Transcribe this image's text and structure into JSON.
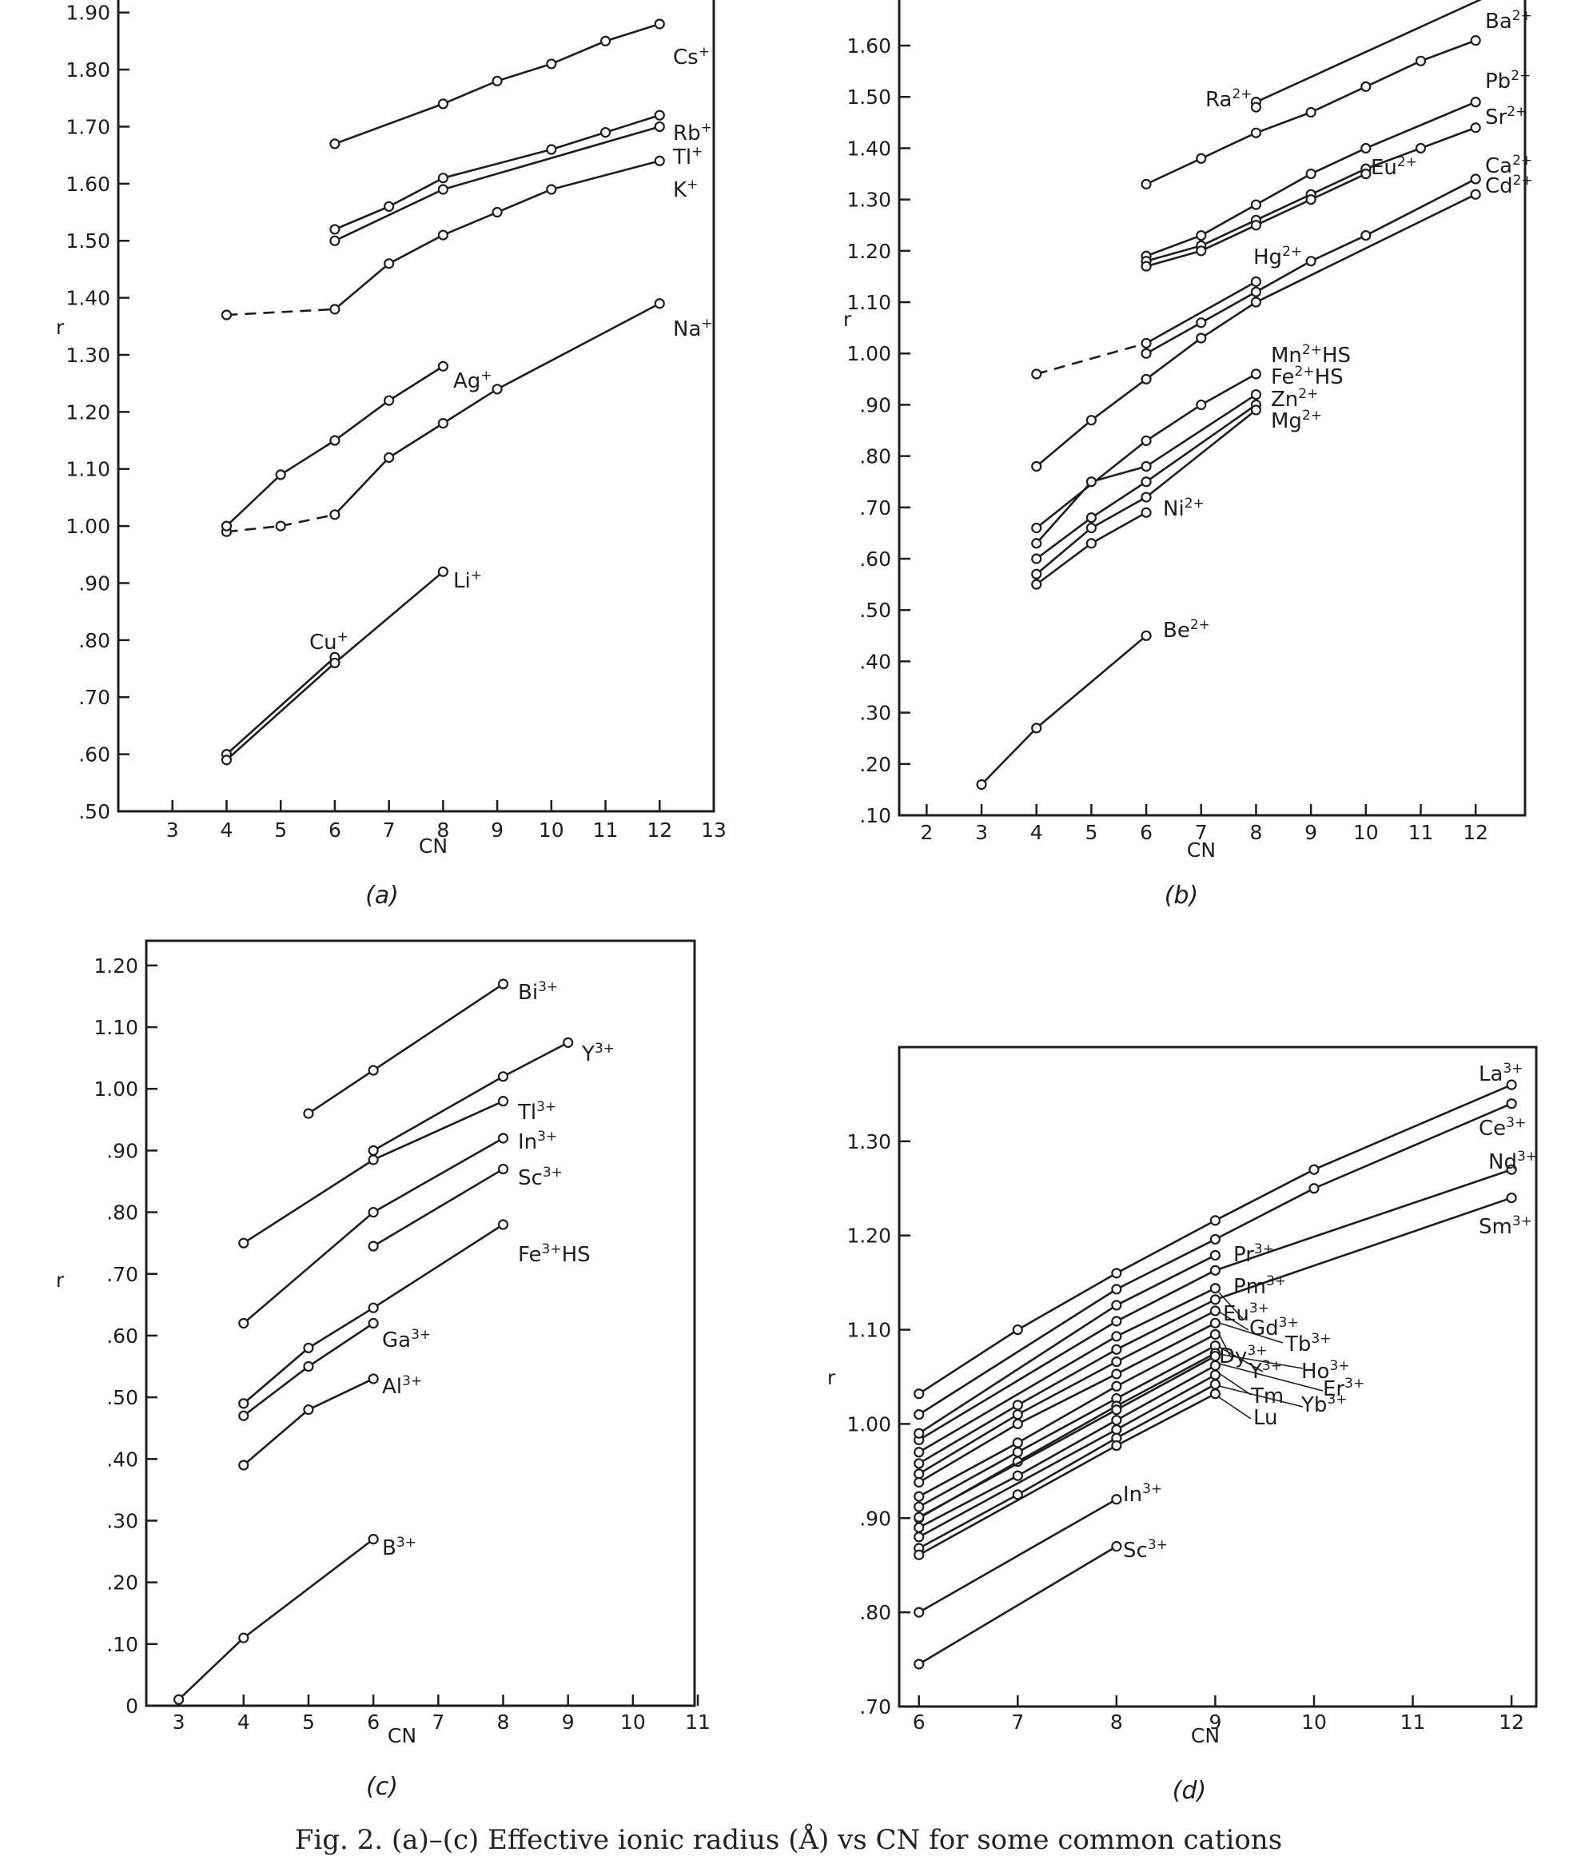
{
  "caption": "Fig. 2. (a)–(c) Effective ionic radius (Å) vs CN for some common cations",
  "chart_data": [
    {
      "type": "line",
      "panel": "(a)",
      "xlabel": "CN",
      "ylabel": "r",
      "xlim": [
        2,
        13
      ],
      "ylim": [
        0.5,
        1.95
      ],
      "xticks": [
        3,
        4,
        5,
        6,
        7,
        8,
        9,
        10,
        11,
        12,
        13
      ],
      "xtick_labels": [
        "3",
        "4",
        "5",
        "6",
        "7",
        "8",
        "9",
        "10",
        "11",
        "12",
        "13"
      ],
      "yticks": [
        0.5,
        0.6,
        0.7,
        0.8,
        0.9,
        1.0,
        1.1,
        1.2,
        1.3,
        1.4,
        1.5,
        1.6,
        1.7,
        1.8,
        1.9
      ],
      "ytick_labels": [
        ".50",
        ".60",
        ".70",
        ".80",
        ".90",
        "1.00",
        "1.10",
        "1.20",
        "1.30",
        "1.40",
        "1.50",
        "1.60",
        "1.70",
        "1.80",
        "1.90"
      ],
      "series": [
        {
          "name": "Cs+",
          "label": "Cs",
          "charge": "+",
          "x": [
            6,
            8,
            9,
            10,
            11,
            12
          ],
          "y": [
            1.67,
            1.74,
            1.78,
            1.81,
            1.85,
            1.88
          ]
        },
        {
          "name": "Rb+",
          "label": "Rb",
          "charge": "+",
          "x": [
            6,
            7,
            8,
            10,
            11,
            12
          ],
          "y": [
            1.52,
            1.56,
            1.61,
            1.66,
            1.69,
            1.72
          ]
        },
        {
          "name": "Tl+",
          "label": "Tl",
          "charge": "+",
          "x": [
            6,
            8,
            12
          ],
          "y": [
            1.5,
            1.59,
            1.7
          ]
        },
        {
          "name": "K+",
          "label": "K",
          "charge": "+",
          "x": [
            4,
            6,
            7,
            8,
            9,
            10,
            12
          ],
          "y": [
            1.37,
            1.38,
            1.46,
            1.51,
            1.55,
            1.59,
            1.64
          ],
          "dashed_segments": [
            0
          ]
        },
        {
          "name": "Na+",
          "label": "Na",
          "charge": "+",
          "x": [
            4,
            5,
            6,
            7,
            8,
            9,
            12
          ],
          "y": [
            0.99,
            1.0,
            1.02,
            1.12,
            1.18,
            1.24,
            1.39
          ],
          "dashed_segments": [
            0,
            1
          ]
        },
        {
          "name": "Ag+",
          "label": "Ag",
          "charge": "+",
          "x": [
            4,
            5,
            6,
            7,
            8
          ],
          "y": [
            1.0,
            1.09,
            1.15,
            1.22,
            1.28
          ]
        },
        {
          "name": "Cu+",
          "label": "Cu",
          "charge": "+",
          "x": [
            4,
            6
          ],
          "y": [
            0.6,
            0.77
          ]
        },
        {
          "name": "Li+",
          "label": "Li",
          "charge": "+",
          "x": [
            4,
            6,
            8
          ],
          "y": [
            0.59,
            0.76,
            0.92
          ]
        }
      ]
    },
    {
      "type": "line",
      "panel": "(b)",
      "xlabel": "CN",
      "ylabel": "r",
      "xlim": [
        1.5,
        12.9
      ],
      "ylim": [
        0.1,
        1.72
      ],
      "xticks": [
        2,
        3,
        4,
        5,
        6,
        7,
        8,
        9,
        10,
        11,
        12
      ],
      "xtick_labels": [
        "2",
        "3",
        "4",
        "5",
        "6",
        "7",
        "8",
        "9",
        "10",
        "11",
        "12"
      ],
      "yticks": [
        0.1,
        0.2,
        0.3,
        0.4,
        0.5,
        0.6,
        0.7,
        0.8,
        0.9,
        1.0,
        1.1,
        1.2,
        1.3,
        1.4,
        1.5,
        1.6
      ],
      "ytick_labels": [
        ".10",
        ".20",
        ".30",
        ".40",
        ".50",
        ".60",
        ".70",
        ".80",
        ".90",
        "1.00",
        "1.10",
        "1.20",
        "1.30",
        "1.40",
        "1.50",
        "1.60"
      ],
      "series": [
        {
          "name": "Ba2+",
          "label": "Ba",
          "charge": "2+",
          "x": [
            8,
            12.3
          ],
          "y": [
            1.49,
            1.7
          ]
        },
        {
          "name": "Ra2+",
          "label": "Ra",
          "charge": "2+",
          "x": [
            8
          ],
          "y": [
            1.48
          ]
        },
        {
          "name": "Ba2+ (lower)",
          "label": "",
          "charge": "",
          "x": [
            6,
            7,
            8,
            9,
            10,
            11,
            12
          ],
          "y": [
            1.33,
            1.38,
            1.43,
            1.47,
            1.52,
            1.57,
            1.61
          ]
        },
        {
          "name": "Pb2+",
          "label": "Pb",
          "charge": "2+",
          "x": [
            6,
            7,
            8,
            9,
            10,
            12
          ],
          "y": [
            1.19,
            1.23,
            1.29,
            1.35,
            1.4,
            1.49
          ]
        },
        {
          "name": "Sr2+",
          "label": "Sr",
          "charge": "2+",
          "x": [
            6,
            7,
            8,
            9,
            10,
            11,
            12
          ],
          "y": [
            1.18,
            1.21,
            1.26,
            1.31,
            1.36,
            1.4,
            1.44
          ]
        },
        {
          "name": "Eu2+",
          "label": "Eu",
          "charge": "2+",
          "x": [
            6,
            7,
            8,
            9,
            10
          ],
          "y": [
            1.17,
            1.2,
            1.25,
            1.3,
            1.35
          ]
        },
        {
          "name": "Hg2+",
          "label": "Hg",
          "charge": "2+",
          "x": [
            4,
            6,
            8
          ],
          "y": [
            0.96,
            1.02,
            1.14
          ],
          "dashed_segments": [
            0
          ]
        },
        {
          "name": "Ca2+",
          "label": "Ca",
          "charge": "2+",
          "x": [
            6,
            7,
            8,
            9,
            10,
            12
          ],
          "y": [
            1.0,
            1.06,
            1.12,
            1.18,
            1.23,
            1.34
          ]
        },
        {
          "name": "Cd2+",
          "label": "Cd",
          "charge": "2+",
          "x": [
            4,
            5,
            6,
            7,
            8,
            12
          ],
          "y": [
            0.78,
            0.87,
            0.95,
            1.03,
            1.1,
            1.31
          ]
        },
        {
          "name": "Mn2+HS",
          "label": "Mn",
          "charge": "2+",
          "suffix": "HS",
          "x": [
            4,
            6,
            7,
            8
          ],
          "y": [
            0.66,
            0.83,
            0.9,
            0.96
          ]
        },
        {
          "name": "Fe2+HS",
          "label": "Fe",
          "charge": "2+",
          "suffix": "HS",
          "x": [
            4,
            5,
            6,
            8
          ],
          "y": [
            0.63,
            0.75,
            0.78,
            0.92
          ]
        },
        {
          "name": "Zn2+",
          "label": "Zn",
          "charge": "2+",
          "x": [
            4,
            5,
            6,
            8
          ],
          "y": [
            0.6,
            0.68,
            0.75,
            0.9
          ]
        },
        {
          "name": "Mg2+",
          "label": "Mg",
          "charge": "2+",
          "x": [
            4,
            5,
            6,
            8
          ],
          "y": [
            0.57,
            0.66,
            0.72,
            0.89
          ]
        },
        {
          "name": "Ni2+",
          "label": "Ni",
          "charge": "2+",
          "x": [
            4,
            5,
            6
          ],
          "y": [
            0.55,
            0.63,
            0.69
          ]
        },
        {
          "name": "Be2+",
          "label": "Be",
          "charge": "2+",
          "x": [
            3,
            4,
            6
          ],
          "y": [
            0.16,
            0.27,
            0.45
          ]
        }
      ]
    },
    {
      "type": "line",
      "panel": "(c)",
      "xlabel": "CN",
      "ylabel": "r",
      "xlim": [
        2.5,
        10.95
      ],
      "ylim": [
        0.0,
        1.24
      ],
      "xticks": [
        3,
        4,
        5,
        6,
        7,
        8,
        9,
        10,
        11
      ],
      "xtick_labels": [
        "3",
        "4",
        "5",
        "6",
        "7",
        "8",
        "9",
        "10",
        "11"
      ],
      "yticks": [
        0.0,
        0.1,
        0.2,
        0.3,
        0.4,
        0.5,
        0.6,
        0.7,
        0.8,
        0.9,
        1.0,
        1.1,
        1.2
      ],
      "ytick_labels": [
        "0",
        ".10",
        ".20",
        ".30",
        ".40",
        ".50",
        ".60",
        ".70",
        ".80",
        ".90",
        "1.00",
        "1.10",
        "1.20"
      ],
      "series": [
        {
          "name": "Bi3+",
          "label": "Bi",
          "charge": "3+",
          "x": [
            5,
            6,
            8
          ],
          "y": [
            0.96,
            1.03,
            1.17
          ]
        },
        {
          "name": "Y3+",
          "label": "Y",
          "charge": "3+",
          "x": [
            6,
            8,
            9
          ],
          "y": [
            0.9,
            1.02,
            1.075
          ]
        },
        {
          "name": "Tl3+",
          "label": "Tl",
          "charge": "3+",
          "x": [
            4,
            6,
            8
          ],
          "y": [
            0.75,
            0.885,
            0.98
          ]
        },
        {
          "name": "In3+",
          "label": "In",
          "charge": "3+",
          "x": [
            4,
            6,
            8
          ],
          "y": [
            0.62,
            0.8,
            0.92
          ]
        },
        {
          "name": "Sc3+",
          "label": "Sc",
          "charge": "3+",
          "x": [
            6,
            8
          ],
          "y": [
            0.745,
            0.87
          ]
        },
        {
          "name": "Fe3+HS",
          "label": "Fe",
          "charge": "3+",
          "suffix": "HS",
          "x": [
            4,
            5,
            6,
            8
          ],
          "y": [
            0.49,
            0.58,
            0.645,
            0.78
          ]
        },
        {
          "name": "Ga3+",
          "label": "Ga",
          "charge": "3+",
          "x": [
            4,
            5,
            6
          ],
          "y": [
            0.47,
            0.55,
            0.62
          ]
        },
        {
          "name": "Al3+",
          "label": "Al",
          "charge": "3+",
          "x": [
            4,
            5,
            6
          ],
          "y": [
            0.39,
            0.48,
            0.53
          ]
        },
        {
          "name": "B3+",
          "label": "B",
          "charge": "3+",
          "x": [
            3,
            4,
            6
          ],
          "y": [
            0.01,
            0.11,
            0.27
          ]
        }
      ]
    },
    {
      "type": "line",
      "panel": "(d)",
      "xlabel": "CN",
      "ylabel": "r",
      "xlim": [
        5.8,
        12.25
      ],
      "ylim": [
        0.7,
        1.4
      ],
      "xticks": [
        6,
        7,
        8,
        9,
        10,
        11,
        12
      ],
      "xtick_labels": [
        "6",
        "7",
        "8",
        "9",
        "10",
        "11",
        "12"
      ],
      "yticks": [
        0.7,
        0.8,
        0.9,
        1.0,
        1.1,
        1.2,
        1.3
      ],
      "ytick_labels": [
        ".70",
        ".80",
        ".90",
        "1.00",
        "1.10",
        "1.20",
        "1.30"
      ],
      "series": [
        {
          "name": "La3+",
          "label": "La",
          "charge": "3+",
          "x": [
            6,
            7,
            8,
            9,
            10,
            12
          ],
          "y": [
            1.032,
            1.1,
            1.16,
            1.216,
            1.27,
            1.36
          ]
        },
        {
          "name": "Ce3+",
          "label": "Ce",
          "charge": "3+",
          "x": [
            6,
            8,
            9,
            10,
            12
          ],
          "y": [
            1.01,
            1.143,
            1.196,
            1.25,
            1.34
          ]
        },
        {
          "name": "Nd3+",
          "label": "Nd",
          "charge": "3+",
          "x": [
            6,
            8,
            9,
            12
          ],
          "y": [
            0.983,
            1.109,
            1.163,
            1.27
          ]
        },
        {
          "name": "Sm3+",
          "label": "Sm",
          "charge": "3+",
          "x": [
            6,
            7,
            8,
            9,
            12
          ],
          "y": [
            0.958,
            1.02,
            1.079,
            1.132,
            1.24
          ]
        },
        {
          "name": "Pr3+",
          "label": "Pr",
          "charge": "3+",
          "x": [
            6,
            8,
            9
          ],
          "y": [
            0.99,
            1.126,
            1.179
          ]
        },
        {
          "name": "Pm3+",
          "label": "Pm",
          "charge": "3+",
          "x": [
            6,
            8,
            9
          ],
          "y": [
            0.97,
            1.093,
            1.144
          ]
        },
        {
          "name": "Eu3+",
          "label": "Eu",
          "charge": "3+",
          "x": [
            6,
            7,
            8,
            9
          ],
          "y": [
            0.947,
            1.01,
            1.066,
            1.12
          ]
        },
        {
          "name": "Gd3+",
          "label": "Gd",
          "charge": "3+",
          "x": [
            6,
            7,
            8,
            9
          ],
          "y": [
            0.938,
            1.0,
            1.053,
            1.107
          ]
        },
        {
          "name": "Tb3+",
          "label": "Tb",
          "charge": "3+",
          "x": [
            6,
            7,
            8,
            9
          ],
          "y": [
            0.923,
            0.98,
            1.04,
            1.095
          ]
        },
        {
          "name": "Dy3+",
          "label": "Dy",
          "charge": "3+",
          "x": [
            6,
            7,
            8,
            9
          ],
          "y": [
            0.912,
            0.97,
            1.027,
            1.083
          ]
        },
        {
          "name": "Y3+",
          "label": "Y",
          "charge": "3+",
          "x": [
            6,
            7,
            8,
            9
          ],
          "y": [
            0.9,
            0.96,
            1.019,
            1.075
          ]
        },
        {
          "name": "Ho3+",
          "label": "Ho",
          "charge": "3+",
          "x": [
            6,
            8,
            9
          ],
          "y": [
            0.901,
            1.015,
            1.072
          ]
        },
        {
          "name": "Er3+",
          "label": "Er",
          "charge": "3+",
          "x": [
            6,
            7,
            8,
            9
          ],
          "y": [
            0.89,
            0.945,
            1.004,
            1.062
          ]
        },
        {
          "name": "Tm",
          "label": "Tm",
          "charge": "",
          "x": [
            6,
            8,
            9
          ],
          "y": [
            0.88,
            0.994,
            1.052
          ]
        },
        {
          "name": "Yb3+",
          "label": "Yb",
          "charge": "3+",
          "x": [
            6,
            7,
            8,
            9
          ],
          "y": [
            0.868,
            0.925,
            0.985,
            1.042
          ]
        },
        {
          "name": "Lu",
          "label": "Lu",
          "charge": "",
          "x": [
            6,
            8,
            9
          ],
          "y": [
            0.861,
            0.977,
            1.032
          ]
        },
        {
          "name": "In3+",
          "label": "In",
          "charge": "3+",
          "x": [
            6,
            8
          ],
          "y": [
            0.8,
            0.92
          ]
        },
        {
          "name": "Sc3+",
          "label": "Sc",
          "charge": "3+",
          "x": [
            6,
            8
          ],
          "y": [
            0.745,
            0.87
          ]
        }
      ]
    }
  ]
}
